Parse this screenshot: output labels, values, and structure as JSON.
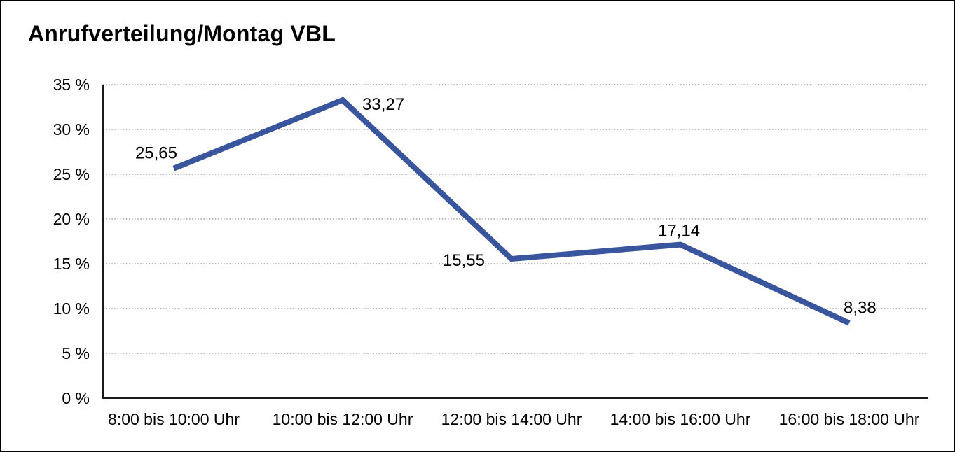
{
  "title": "Anrufverteilung/Montag VBL",
  "colors": {
    "line": "#38559E",
    "grid": "#8c8c8c",
    "axis": "#1a1a1a",
    "text": "#000000",
    "background": "#ffffff"
  },
  "chart_data": {
    "type": "line",
    "title": "Anrufverteilung/Montag VBL",
    "categories": [
      "8:00 bis 10:00 Uhr",
      "10:00 bis 12:00 Uhr",
      "12:00 bis 14:00 Uhr",
      "14:00 bis 16:00 Uhr",
      "16:00 bis 18:00 Uhr"
    ],
    "values": [
      25.65,
      33.27,
      15.55,
      17.14,
      8.38
    ],
    "value_labels": [
      "25,65",
      "33,27",
      "15,55",
      "17,14",
      "8,38"
    ],
    "yticks": [
      {
        "value": 0,
        "label": "0 %"
      },
      {
        "value": 5,
        "label": "5 %"
      },
      {
        "value": 10,
        "label": "10 %"
      },
      {
        "value": 15,
        "label": "15 %"
      },
      {
        "value": 20,
        "label": "20 %"
      },
      {
        "value": 25,
        "label": "25 %"
      },
      {
        "value": 30,
        "label": "30 %"
      },
      {
        "value": 35,
        "label": "35 %"
      }
    ],
    "ylim": [
      0,
      35
    ],
    "xlabel": "",
    "ylabel": "",
    "grid": "dotted-horizontal",
    "legend": "none",
    "decimal_separator": ","
  }
}
